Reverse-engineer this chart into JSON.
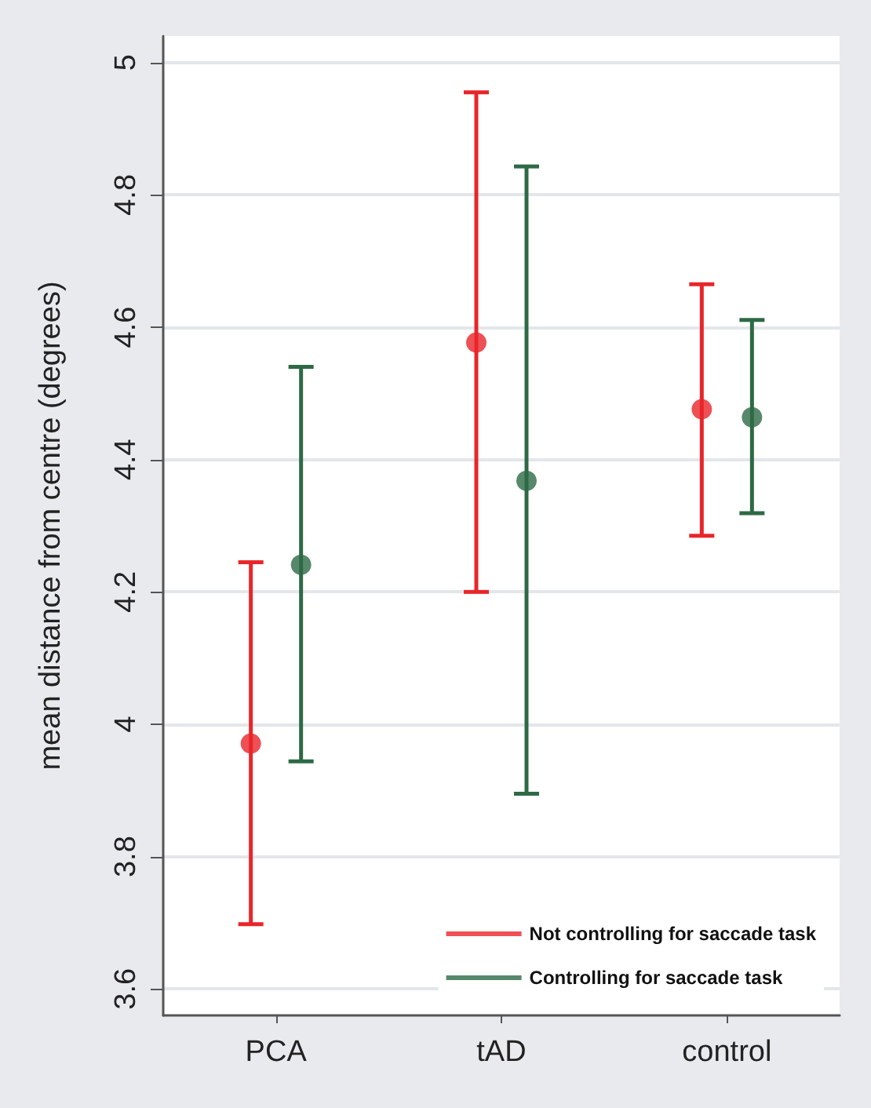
{
  "chart_data": {
    "type": "scatter",
    "ylabel": "mean distance from centre (degrees)",
    "categories": [
      "PCA",
      "tAD",
      "control"
    ],
    "series": [
      {
        "name": "Not controlling for saccade task",
        "color": "#e8262a",
        "values": [
          3.971,
          4.577,
          4.476
        ],
        "errors": [
          [
            3.698,
            4.245
          ],
          [
            4.2,
            4.955
          ],
          [
            4.285,
            4.665
          ]
        ]
      },
      {
        "name": "Controlling for saccade task",
        "color": "#2d6a45",
        "values": [
          4.241,
          4.368,
          4.464
        ],
        "errors": [
          [
            3.944,
            4.54
          ],
          [
            3.895,
            4.843
          ],
          [
            4.319,
            4.611
          ]
        ]
      }
    ],
    "ylim": [
      3.56,
      5.04
    ],
    "yticks": [
      3.6,
      3.8,
      4,
      4.2,
      4.4,
      4.6,
      4.8,
      5
    ],
    "grid": "y",
    "legend": "bottom right",
    "marker": "circle"
  }
}
